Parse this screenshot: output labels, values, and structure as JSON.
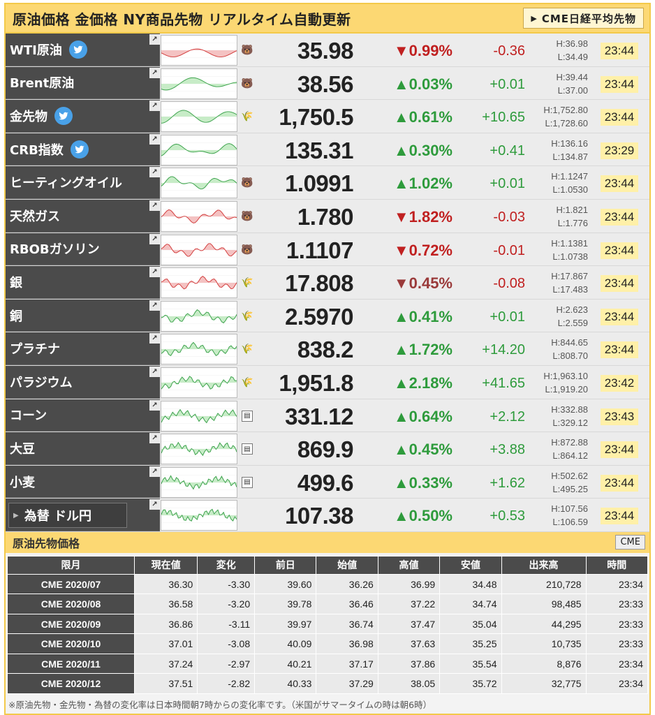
{
  "header": {
    "title": "原油価格 金価格 NY商品先物 リアルタイム自動更新",
    "cme_button": "CME日経平均先物"
  },
  "colors": {
    "accent": "#fcd873",
    "up": "#2e9b3c",
    "down": "#c02020",
    "name_bg": "#4b4b4b"
  },
  "commodities": [
    {
      "name": "WTI原油",
      "twitter": true,
      "icon": "bear-icon",
      "price": "35.98",
      "dir": "down",
      "pct": "▼0.99%",
      "chg": "-0.36",
      "high": "H:36.98",
      "low": "L:34.49",
      "time": "23:44"
    },
    {
      "name": "Brent原油",
      "twitter": false,
      "icon": "bear-icon",
      "price": "38.56",
      "dir": "up",
      "pct": "▲0.03%",
      "chg": "+0.01",
      "high": "H:39.44",
      "low": "L:37.00",
      "time": "23:44"
    },
    {
      "name": "金先物",
      "twitter": true,
      "icon": "wheat-icon",
      "price": "1,750.5",
      "dir": "up",
      "pct": "▲0.61%",
      "chg": "+10.65",
      "high": "H:1,752.80",
      "low": "L:1,728.60",
      "time": "23:44"
    },
    {
      "name": "CRB指数",
      "twitter": true,
      "icon": "",
      "price": "135.31",
      "dir": "up",
      "pct": "▲0.30%",
      "chg": "+0.41",
      "high": "H:136.16",
      "low": "L:134.87",
      "time": "23:29"
    },
    {
      "name": "ヒーティングオイル",
      "twitter": false,
      "icon": "bear-icon",
      "price": "1.0991",
      "dir": "up",
      "pct": "▲1.02%",
      "chg": "+0.01",
      "high": "H:1.1247",
      "low": "L:1.0530",
      "time": "23:44"
    },
    {
      "name": "天然ガス",
      "twitter": false,
      "icon": "bear-icon",
      "price": "1.780",
      "dir": "down",
      "pct": "▼1.82%",
      "chg": "-0.03",
      "high": "H:1.821",
      "low": "L:1.776",
      "time": "23:44"
    },
    {
      "name": "RBOBガソリン",
      "twitter": false,
      "icon": "bear-icon",
      "price": "1.1107",
      "dir": "down",
      "pct": "▼0.72%",
      "chg": "-0.01",
      "high": "H:1.1381",
      "low": "L:1.0738",
      "time": "23:44"
    },
    {
      "name": "銀",
      "twitter": false,
      "icon": "wheat-icon",
      "price": "17.808",
      "dir": "downlight",
      "pct": "▼0.45%",
      "chg": "-0.08",
      "high": "H:17.867",
      "low": "L:17.483",
      "time": "23:44"
    },
    {
      "name": "銅",
      "twitter": false,
      "icon": "wheat-icon",
      "price": "2.5970",
      "dir": "up",
      "pct": "▲0.41%",
      "chg": "+0.01",
      "high": "H:2.623",
      "low": "L:2.559",
      "time": "23:44"
    },
    {
      "name": "プラチナ",
      "twitter": false,
      "icon": "wheat-icon",
      "price": "838.2",
      "dir": "up",
      "pct": "▲1.72%",
      "chg": "+14.20",
      "high": "H:844.65",
      "low": "L:808.70",
      "time": "23:44"
    },
    {
      "name": "パラジウム",
      "twitter": false,
      "icon": "wheat-icon",
      "price": "1,951.8",
      "dir": "up",
      "pct": "▲2.18%",
      "chg": "+41.65",
      "high": "H:1,963.10",
      "low": "L:1,919.20",
      "time": "23:42"
    },
    {
      "name": "コーン",
      "twitter": false,
      "icon": "chart-box-icon",
      "price": "331.12",
      "dir": "up",
      "pct": "▲0.64%",
      "chg": "+2.12",
      "high": "H:332.88",
      "low": "L:329.12",
      "time": "23:43"
    },
    {
      "name": "大豆",
      "twitter": false,
      "icon": "chart-box-icon",
      "price": "869.9",
      "dir": "up",
      "pct": "▲0.45%",
      "chg": "+3.88",
      "high": "H:872.88",
      "low": "L:864.12",
      "time": "23:44"
    },
    {
      "name": "小麦",
      "twitter": false,
      "icon": "chart-box-icon",
      "price": "499.6",
      "dir": "up",
      "pct": "▲0.33%",
      "chg": "+1.62",
      "high": "H:502.62",
      "low": "L:495.25",
      "time": "23:44"
    },
    {
      "name": "為替 ドル円",
      "twitter": false,
      "icon": "",
      "price": "107.38",
      "dir": "up",
      "pct": "▲0.50%",
      "chg": "+0.53",
      "high": "H:107.56",
      "low": "L:106.59",
      "time": "23:44",
      "selector": true
    }
  ],
  "crude": {
    "section_title": "原油先物価格",
    "section_button": "CME",
    "columns": [
      "限月",
      "現在値",
      "変化",
      "前日",
      "始値",
      "高値",
      "安値",
      "出来高",
      "時間"
    ],
    "rows": [
      [
        "CME 2020/07",
        "36.30",
        "-3.30",
        "39.60",
        "36.26",
        "36.99",
        "34.48",
        "210,728",
        "23:34"
      ],
      [
        "CME 2020/08",
        "36.58",
        "-3.20",
        "39.78",
        "36.46",
        "37.22",
        "34.74",
        "98,485",
        "23:33"
      ],
      [
        "CME 2020/09",
        "36.86",
        "-3.11",
        "39.97",
        "36.74",
        "37.47",
        "35.04",
        "44,295",
        "23:33"
      ],
      [
        "CME 2020/10",
        "37.01",
        "-3.08",
        "40.09",
        "36.98",
        "37.63",
        "35.25",
        "10,735",
        "23:33"
      ],
      [
        "CME 2020/11",
        "37.24",
        "-2.97",
        "40.21",
        "37.17",
        "37.86",
        "35.54",
        "8,876",
        "23:34"
      ],
      [
        "CME 2020/12",
        "37.51",
        "-2.82",
        "40.33",
        "37.29",
        "38.05",
        "35.72",
        "32,775",
        "23:34"
      ]
    ],
    "note": "※原油先物・金先物・為替の変化率は日本時間朝7時からの変化率です。（米国がサマータイムの時は朝6時）"
  }
}
